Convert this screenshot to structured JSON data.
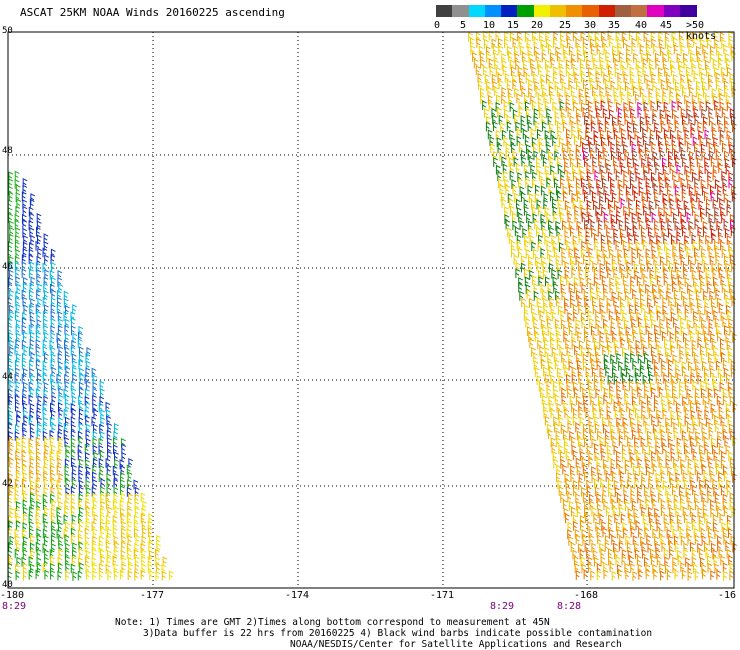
{
  "title": "ASCAT 25KM NOAA Winds 20160225 ascending",
  "colorbar": {
    "labels": [
      "0",
      "5",
      "10",
      "15",
      "20",
      "25",
      "30",
      "35",
      "40",
      "45",
      ">50 knots"
    ],
    "colors": [
      "#404040",
      "#909090",
      "#00d8ff",
      "#0090ff",
      "#0020c0",
      "#00a000",
      "#f0f000",
      "#f0c000",
      "#f09000",
      "#e86000",
      "#d02000",
      "#a06040",
      "#c07040",
      "#e000c0",
      "#8000c0",
      "#4000a0"
    ]
  },
  "lat_labels": [
    "50",
    "48",
    "46",
    "44",
    "42",
    "40"
  ],
  "lon_labels": [
    "-180",
    "-177",
    "-174",
    "-171",
    "-168",
    "-16"
  ],
  "time_labels": [
    "8:29",
    "8:29",
    "8:28"
  ],
  "notes": [
    "Note: 1) Times are GMT 2)Times along bottom correspond to measurement at 45N",
    "3)Data buffer is 22 hrs from 20160225 4) Black wind barbs indicate possible contamination",
    "NOAA/NESDIS/Center for Satellite Applications and Research"
  ],
  "map": {
    "lat_range": [
      40,
      50
    ],
    "lon_range": [
      -180,
      -165
    ]
  }
}
